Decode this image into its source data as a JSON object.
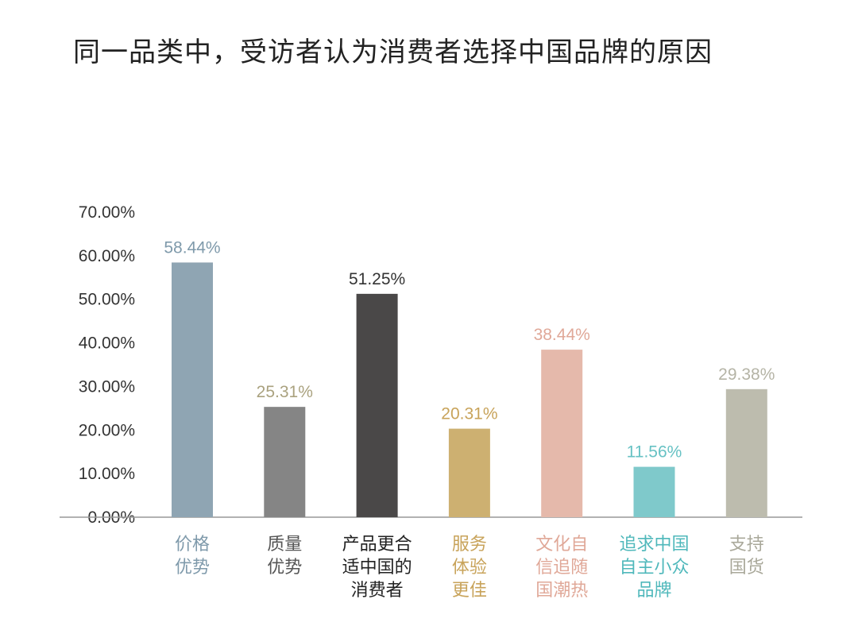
{
  "title": "同一品类中，受访者认为消费者选择中国品牌的原因",
  "chart_data": {
    "type": "bar",
    "ylim": [
      0,
      70
    ],
    "yticks": [
      "0.00%",
      "10.00%",
      "20.00%",
      "30.00%",
      "40.00%",
      "50.00%",
      "60.00%",
      "70.00%"
    ],
    "grid": false,
    "categories": [
      [
        "价格",
        "优势"
      ],
      [
        "质量",
        "优势"
      ],
      [
        "产品更合",
        "适中国的",
        "消费者"
      ],
      [
        "服务",
        "体验",
        "更佳"
      ],
      [
        "文化自",
        "信追随",
        "国潮热"
      ],
      [
        "追求中国",
        "自主小众",
        "品牌"
      ],
      [
        "支持",
        "国货"
      ]
    ],
    "values": [
      58.44,
      25.31,
      51.25,
      20.31,
      38.44,
      11.56,
      29.38
    ],
    "value_labels": [
      "58.44%",
      "25.31%",
      "51.25%",
      "20.31%",
      "38.44%",
      "11.56%",
      "29.38%"
    ],
    "colors": [
      "#8fa5b3",
      "#858585",
      "#4a4848",
      "#cdb071",
      "#e5b9ab",
      "#7fc9cb",
      "#bdbcae"
    ],
    "label_colors": [
      "#7f9aab",
      "#aaa27f",
      "#333333",
      "#c8a35a",
      "#e0a898",
      "#67c2c4",
      "#b5b4a6"
    ],
    "category_colors": [
      "#7f9aab",
      "#555555",
      "#222222",
      "#c8a35a",
      "#e0a898",
      "#4fb8bb",
      "#a9a89a"
    ]
  }
}
